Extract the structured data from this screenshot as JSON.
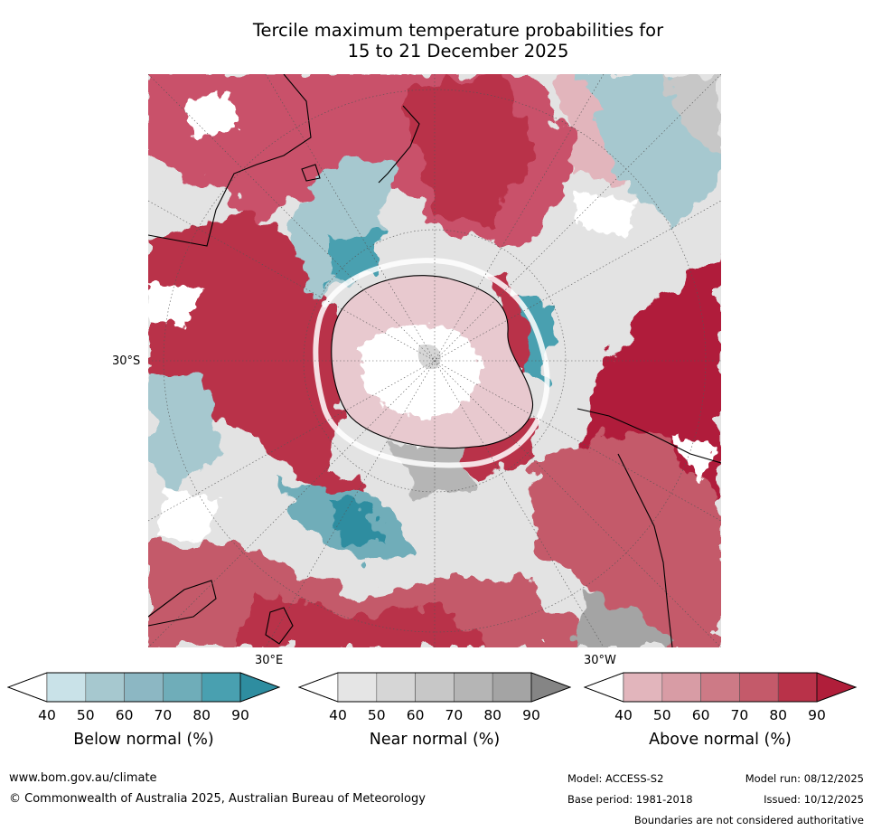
{
  "chart_data": {
    "type": "heatmap",
    "title_line1": "Tercile maximum temperature probabilities for",
    "title_line2": "15 to 21 December 2025",
    "projection": "South polar stereographic",
    "axis_labels": {
      "lat_left": "30°S",
      "lon_bottom_left": "30°E",
      "lon_bottom_right": "30°W"
    },
    "colorbars": [
      {
        "name": "Below normal (%)",
        "ticks": [
          "40",
          "50",
          "60",
          "70",
          "80",
          "90"
        ],
        "colors": [
          "#c9e2e8",
          "#a6c8cf",
          "#8cb7c3",
          "#6fadb9",
          "#49a0b0",
          "#2e8da0"
        ],
        "extend_low_color": "#ffffff",
        "extend_high_color": "#2e8da0"
      },
      {
        "name": "Near normal (%)",
        "ticks": [
          "40",
          "50",
          "60",
          "70",
          "80",
          "90"
        ],
        "colors": [
          "#e5e5e5",
          "#d6d6d6",
          "#c7c7c7",
          "#b5b5b5",
          "#a4a4a4",
          "#858585"
        ],
        "extend_low_color": "#ffffff",
        "extend_high_color": "#858585"
      },
      {
        "name": "Above normal (%)",
        "ticks": [
          "40",
          "50",
          "60",
          "70",
          "80",
          "90"
        ],
        "colors": [
          "#e2b5bc",
          "#d89ca5",
          "#cd7a86",
          "#c45a6a",
          "#b93249",
          "#b01e3a"
        ],
        "extend_low_color": "#ffffff",
        "extend_high_color": "#b01e3a"
      }
    ],
    "regions_description_colors": {
      "ocean_above": "#b93249",
      "ocean_near": "#e0e0e0",
      "ocean_below": "#8cb7c3"
    }
  },
  "footer": {
    "url": "www.bom.gov.au/climate",
    "copyright": "© Commonwealth of Australia 2025, Australian Bureau of Meteorology",
    "model": "Model: ACCESS-S2",
    "base_period": "Base period: 1981-2018",
    "model_run": "Model run: 08/12/2025",
    "issued": "Issued: 10/12/2025",
    "disclaimer": "Boundaries are not considered authoritative"
  }
}
